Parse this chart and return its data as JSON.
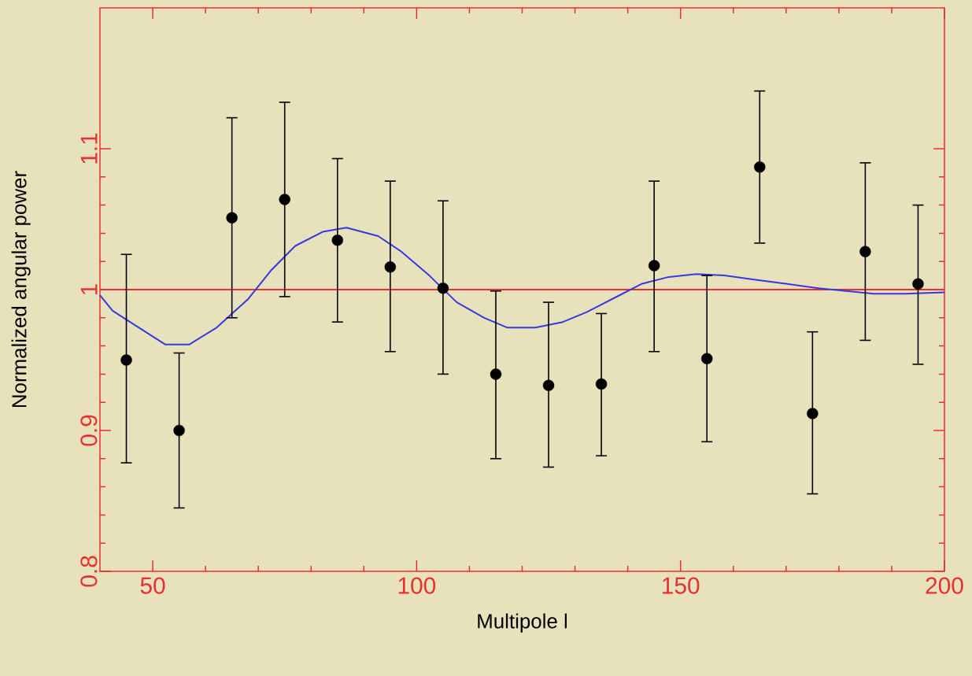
{
  "chart_data": {
    "type": "scatter",
    "xlabel": "Multipole l",
    "ylabel": "Normalized angular power",
    "xlim": [
      40,
      200
    ],
    "xticks": [
      50,
      100,
      150,
      200
    ],
    "ylim": [
      0.8,
      1.2
    ],
    "yticks": [
      0.8,
      0.9,
      1,
      1.1
    ],
    "grid": false,
    "ref_lines": [
      {
        "axis": "y",
        "value": 1,
        "color": "#e83030"
      }
    ],
    "series": [
      {
        "color": "#000000",
        "marker": "circle",
        "x": [
          45,
          55,
          65,
          75,
          85,
          95,
          105,
          115,
          125,
          135,
          145,
          155,
          165,
          175,
          185,
          195
        ],
        "values": [
          0.95,
          0.9,
          1.051,
          1.064,
          1.035,
          1.016,
          1.001,
          0.94,
          0.932,
          0.933,
          1.017,
          0.951,
          1.087,
          0.912,
          1.027,
          1.004
        ],
        "errors": [
          [
            0.877,
            1.025
          ],
          [
            0.845,
            0.955
          ],
          [
            0.98,
            1.122
          ],
          [
            0.995,
            1.133
          ],
          [
            0.977,
            1.093
          ],
          [
            0.956,
            1.077
          ],
          [
            0.94,
            1.063
          ],
          [
            0.88,
            0.999
          ],
          [
            0.874,
            0.991
          ],
          [
            0.882,
            0.983
          ],
          [
            0.956,
            1.077
          ],
          [
            0.892,
            1.01
          ],
          [
            1.033,
            1.141
          ],
          [
            0.855,
            0.97
          ],
          [
            0.964,
            1.09
          ],
          [
            0.947,
            1.06
          ]
        ]
      },
      {
        "type": "line",
        "color": "#3838e0",
        "marker": "none",
        "line_style": "solid",
        "x": [
          40,
          42.4,
          45.7,
          52.4,
          56.9,
          62.1,
          68,
          72.5,
          77,
          82.2,
          86.7,
          92.7,
          97.1,
          102.4,
          107.6,
          112.8,
          117.2,
          122.5,
          127.7,
          132.2,
          137.4,
          142.6,
          147.8,
          153,
          158.3,
          164.2,
          170.2,
          176.1,
          181.4,
          186.6,
          192.5,
          200
        ],
        "values": [
          0.996,
          0.985,
          0.977,
          0.961,
          0.961,
          0.973,
          0.993,
          1.014,
          1.031,
          1.041,
          1.044,
          1.038,
          1.027,
          1.01,
          0.991,
          0.98,
          0.973,
          0.973,
          0.977,
          0.984,
          0.994,
          1.004,
          1.009,
          1.011,
          1.01,
          1.007,
          1.004,
          1.001,
          0.999,
          0.997,
          0.997,
          0.998
        ]
      }
    ]
  }
}
